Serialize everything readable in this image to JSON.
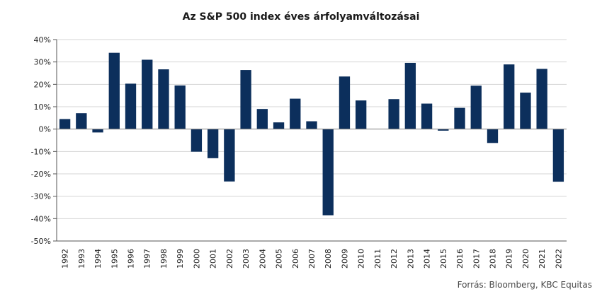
{
  "chart_data": {
    "type": "bar",
    "title": "Az S&P 500 index éves árfolyamváltozásai",
    "xlabel": "",
    "ylabel": "",
    "categories": [
      "1992",
      "1993",
      "1994",
      "1995",
      "1996",
      "1997",
      "1998",
      "1999",
      "2000",
      "2001",
      "2002",
      "2003",
      "2004",
      "2005",
      "2006",
      "2007",
      "2008",
      "2009",
      "2010",
      "2011",
      "2012",
      "2013",
      "2014",
      "2015",
      "2016",
      "2017",
      "2018",
      "2019",
      "2020",
      "2021",
      "2022"
    ],
    "values": [
      4.5,
      7.1,
      -1.5,
      34.1,
      20.3,
      31.0,
      26.7,
      19.5,
      -10.1,
      -13.0,
      -23.4,
      26.4,
      9.0,
      3.0,
      13.6,
      3.5,
      -38.5,
      23.5,
      12.8,
      0.0,
      13.4,
      29.6,
      11.4,
      -0.7,
      9.5,
      19.4,
      -6.2,
      28.9,
      16.3,
      26.9,
      -23.5
    ],
    "ylim": [
      -50,
      40
    ],
    "yticks": [
      40,
      30,
      20,
      10,
      0,
      -10,
      -20,
      -30,
      -40,
      -50
    ],
    "ytick_labels": [
      "40%",
      "30%",
      "20%",
      "10%",
      "0%",
      "-10%",
      "-20%",
      "-30%",
      "-40%",
      "-50%"
    ],
    "grid": true,
    "bar_color": "#0c2f5c",
    "grid_color": "#d4d4d4",
    "source": "Forrás: Bloomberg, KBC Equitas"
  }
}
